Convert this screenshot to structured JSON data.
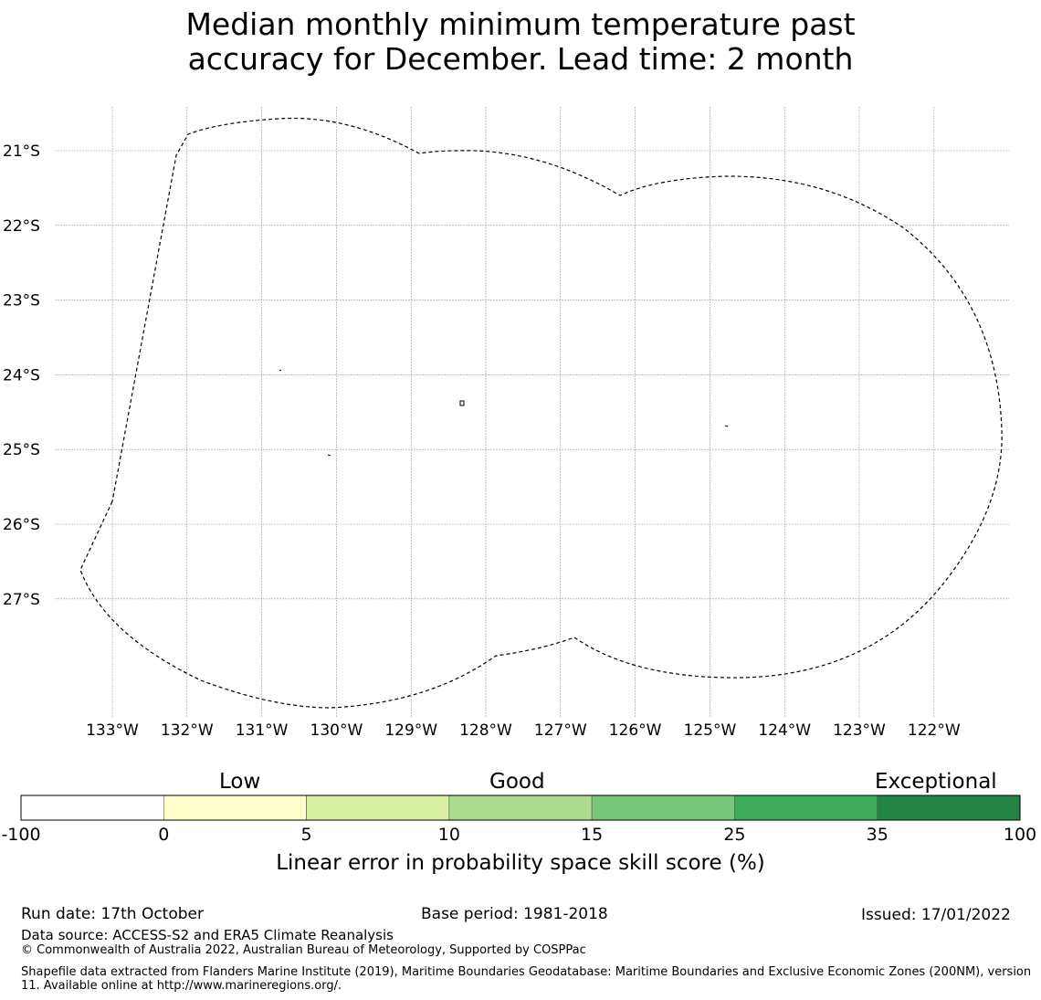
{
  "title": {
    "line1": "Median monthly minimum temperature past",
    "line2": "accuracy for December. Lead time: 2 month"
  },
  "map": {
    "lat_labels": [
      "21°S",
      "22°S",
      "23°S",
      "24°S",
      "25°S",
      "26°S",
      "27°S"
    ],
    "lon_labels": [
      "133°W",
      "132°W",
      "131°W",
      "130°W",
      "129°W",
      "128°W",
      "127°W",
      "126°W",
      "125°W",
      "124°W",
      "123°W",
      "122°W"
    ],
    "boundary_color": "#000000",
    "grid_color": "#999999"
  },
  "colorbar": {
    "categories": [
      {
        "name": "Low"
      },
      {
        "name": "Good"
      },
      {
        "name": "Exceptional"
      }
    ],
    "bins": [
      {
        "from": -100,
        "to": 0,
        "color": "#ffffff"
      },
      {
        "from": 0,
        "to": 5,
        "color": "#ffffcc"
      },
      {
        "from": 5,
        "to": 10,
        "color": "#d9f0a3"
      },
      {
        "from": 10,
        "to": 15,
        "color": "#addd8e"
      },
      {
        "from": 15,
        "to": 25,
        "color": "#78c679"
      },
      {
        "from": 25,
        "to": 35,
        "color": "#41ab5d"
      },
      {
        "from": 35,
        "to": 100,
        "color": "#238443"
      }
    ],
    "ticks": [
      "-100",
      "0",
      "5",
      "10",
      "15",
      "25",
      "35",
      "100"
    ],
    "label": "Linear error in probability space skill score (%)"
  },
  "footer": {
    "run_date": "Run date: 17th October",
    "base_period": "Base period: 1981-2018",
    "issued": "Issued: 17/01/2022",
    "data_source": "Data source: ACCESS-S2 and ERA5 Climate Reanalysis",
    "copyright": "© Commonwealth of Australia 2022, Australian Bureau of Meteorology, Supported by COSPPac",
    "shapefile": "Shapefile data extracted from Flanders Marine Institute (2019), Maritime Boundaries Geodatabase: Maritime Boundaries and Exclusive Economic Zones (200NM), version 11. Available online at http://www.marineregions.org/."
  }
}
